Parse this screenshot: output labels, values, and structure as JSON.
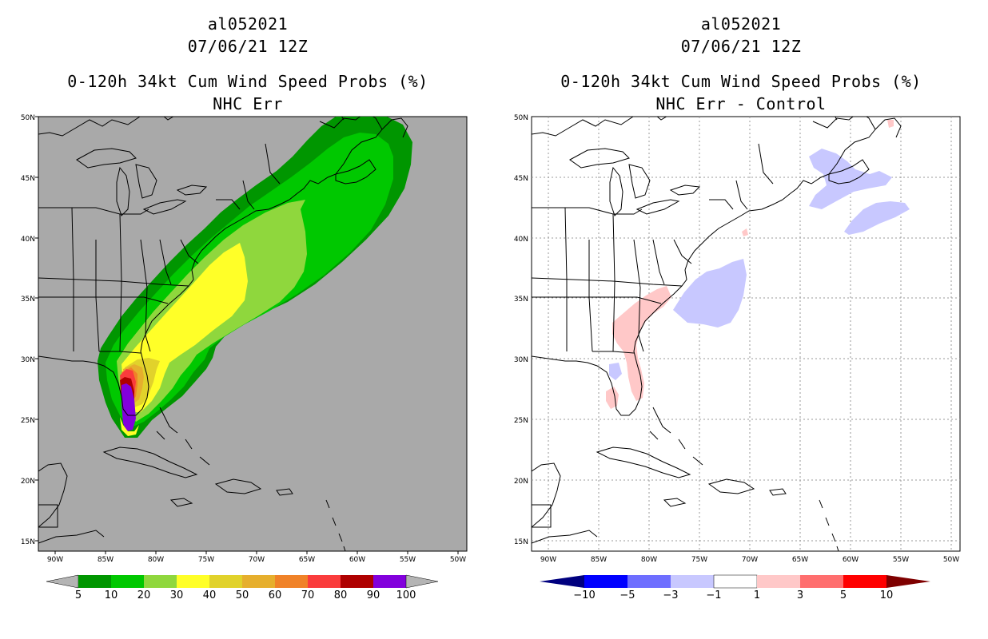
{
  "left_panel": {
    "storm_id": "al052021",
    "datetime": "07/06/21 12Z",
    "product": "0-120h 34kt Cum Wind Speed Probs (%)",
    "subtitle": "NHC Err",
    "background_color": "#a9a9a9",
    "colorbar": {
      "colors": [
        "#009600",
        "#00c800",
        "#8fd73d",
        "#ffff28",
        "#e1d22b",
        "#e6af2d",
        "#f08228",
        "#fa3c3c",
        "#af0000",
        "#8200dc"
      ],
      "labels": [
        "5",
        "10",
        "20",
        "30",
        "40",
        "50",
        "60",
        "70",
        "80",
        "90",
        "100"
      ],
      "end_color": "#b4b4b4"
    }
  },
  "right_panel": {
    "storm_id": "al052021",
    "datetime": "07/06/21 12Z",
    "product": "0-120h 34kt Cum Wind Speed Probs (%)",
    "subtitle": "NHC Err - Control",
    "background_color": "#ffffff",
    "colorbar": {
      "colors": [
        "#0000ff",
        "#6e6eff",
        "#c8c8ff",
        "#ffffff",
        "#ffc8c8",
        "#ff6e6e",
        "#ff0000"
      ],
      "low_end_color": "#00007f",
      "high_end_color": "#7f0000",
      "labels": [
        "−10",
        "−5",
        "−3",
        "−1",
        "1",
        "3",
        "5",
        "10"
      ]
    }
  },
  "axes": {
    "lon_labels": [
      "90W",
      "85W",
      "80W",
      "75W",
      "70W",
      "65W",
      "60W",
      "55W",
      "50W"
    ],
    "lat_labels": [
      "50N",
      "45N",
      "40N",
      "35N",
      "30N",
      "25N",
      "20N",
      "15N"
    ]
  }
}
